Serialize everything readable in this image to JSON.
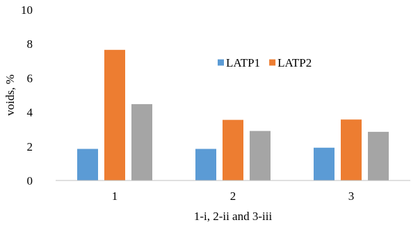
{
  "chart_data": {
    "type": "bar",
    "categories": [
      "1",
      "2",
      "3"
    ],
    "series": [
      {
        "name": "LATP1",
        "values": [
          1.85,
          1.85,
          1.92
        ],
        "color": "#5b9bd5"
      },
      {
        "name": "LATP2",
        "values": [
          7.65,
          3.55,
          3.57
        ],
        "color": "#ed7d31"
      },
      {
        "name": "",
        "values": [
          4.47,
          2.9,
          2.85
        ],
        "color": "#a5a5a5"
      }
    ],
    "title": "",
    "xlabel": "1-i, 2-ii and 3-iii",
    "ylabel": "voids, %",
    "ylim": [
      0,
      10
    ],
    "yticks": [
      "0",
      "2",
      "4",
      "6",
      "8",
      "10"
    ],
    "grid": false,
    "legend": {
      "position": "inside-top-right",
      "entries": [
        "LATP1",
        "LATP2"
      ]
    }
  }
}
